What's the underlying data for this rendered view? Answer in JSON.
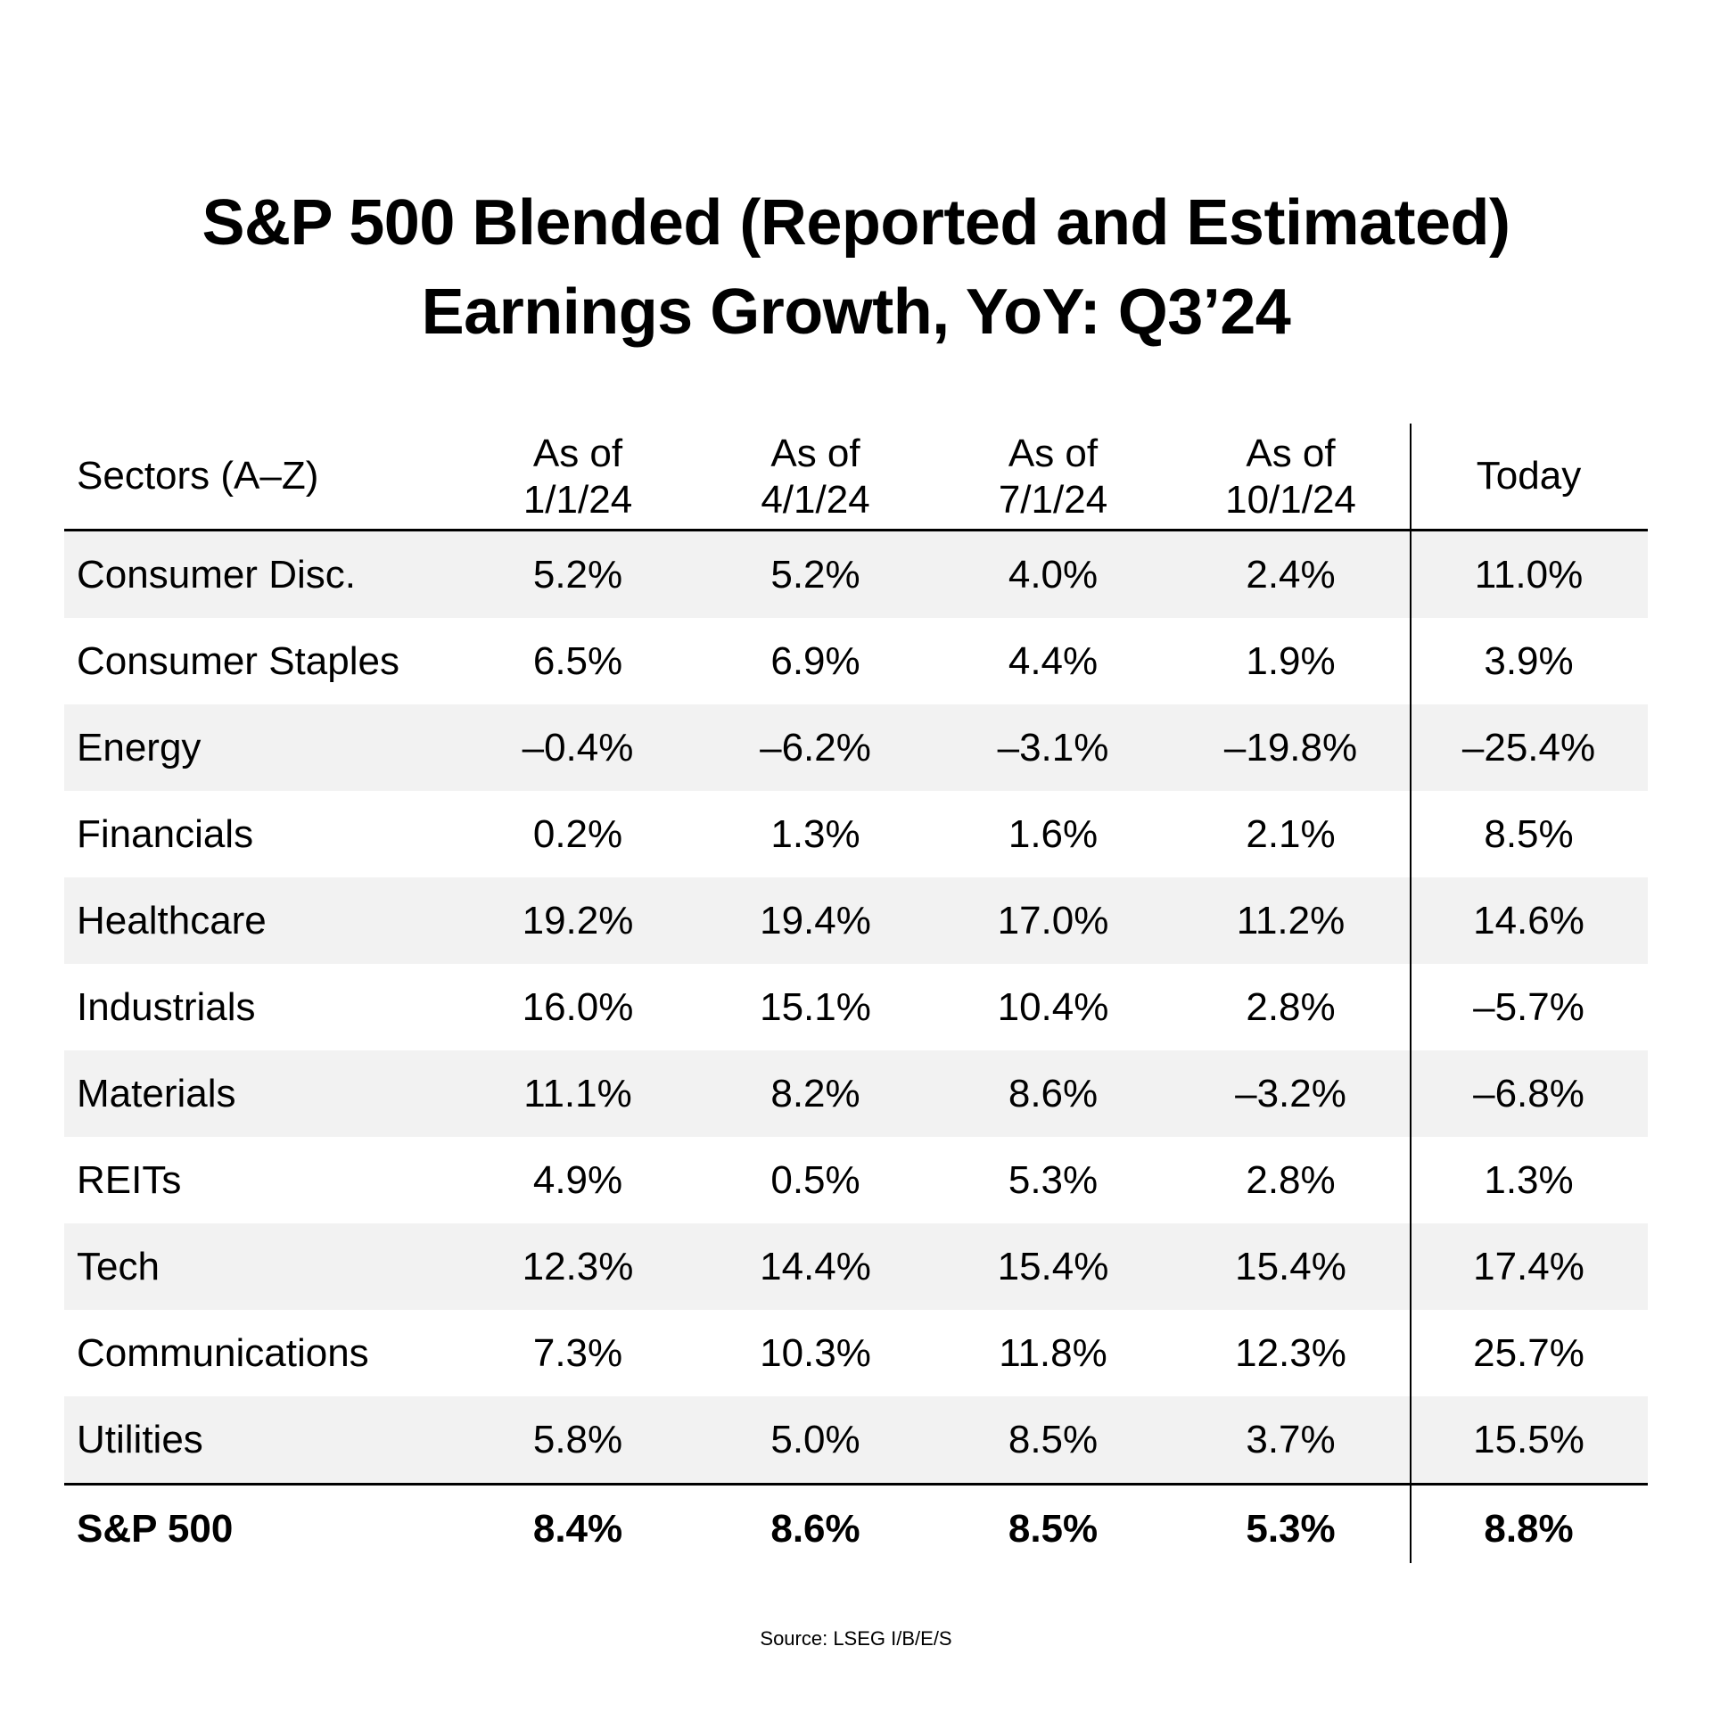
{
  "title": {
    "line1": "S&P 500 Blended (Reported and Estimated)",
    "line2": "Earnings Growth, YoY: Q3’24"
  },
  "table": {
    "headers": [
      "Sectors (A–Z)",
      "As of\n1/1/24",
      "As of\n4/1/24",
      "As of\n7/1/24",
      "As of\n10/1/24",
      "Today"
    ],
    "rows": [
      {
        "sector": "Consumer Disc.",
        "values": [
          "5.2%",
          "5.2%",
          "4.0%",
          "2.4%",
          "11.0%"
        ]
      },
      {
        "sector": "Consumer Staples",
        "values": [
          "6.5%",
          "6.9%",
          "4.4%",
          "1.9%",
          "3.9%"
        ]
      },
      {
        "sector": "Energy",
        "values": [
          "–0.4%",
          "–6.2%",
          "–3.1%",
          "–19.8%",
          "–25.4%"
        ]
      },
      {
        "sector": "Financials",
        "values": [
          "0.2%",
          "1.3%",
          "1.6%",
          "2.1%",
          "8.5%"
        ]
      },
      {
        "sector": "Healthcare",
        "values": [
          "19.2%",
          "19.4%",
          "17.0%",
          "11.2%",
          "14.6%"
        ]
      },
      {
        "sector": "Industrials",
        "values": [
          "16.0%",
          "15.1%",
          "10.4%",
          "2.8%",
          "–5.7%"
        ]
      },
      {
        "sector": "Materials",
        "values": [
          "11.1%",
          "8.2%",
          "8.6%",
          "–3.2%",
          "–6.8%"
        ]
      },
      {
        "sector": "REITs",
        "values": [
          "4.9%",
          "0.5%",
          "5.3%",
          "2.8%",
          "1.3%"
        ]
      },
      {
        "sector": "Tech",
        "values": [
          "12.3%",
          "14.4%",
          "15.4%",
          "15.4%",
          "17.4%"
        ]
      },
      {
        "sector": "Communications",
        "values": [
          "7.3%",
          "10.3%",
          "11.8%",
          "12.3%",
          "25.7%"
        ]
      },
      {
        "sector": "Utilities",
        "values": [
          "5.8%",
          "5.0%",
          "8.5%",
          "3.7%",
          "15.5%"
        ]
      }
    ],
    "total": {
      "sector": "S&P 500",
      "values": [
        "8.4%",
        "8.6%",
        "8.5%",
        "5.3%",
        "8.8%"
      ]
    }
  },
  "source": "Source: LSEG I/B/E/S",
  "colors": {
    "shade": "#f2f2f2",
    "text": "#000000"
  }
}
